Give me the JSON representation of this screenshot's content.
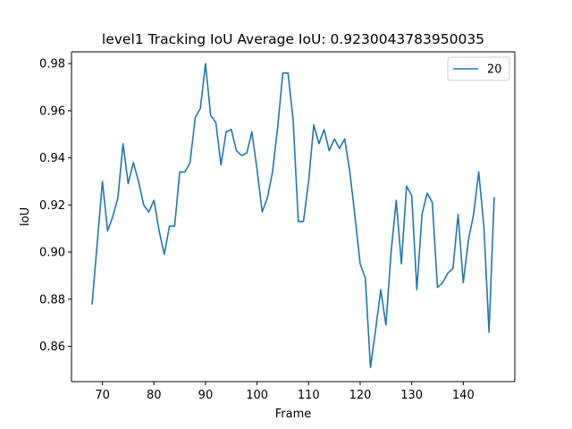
{
  "chart_data": {
    "type": "line",
    "title": "level1 Tracking IoU   Average IoU: 0.9230043783950035",
    "xlabel": "Frame",
    "ylabel": "IoU",
    "xlim": [
      64,
      150
    ],
    "ylim": [
      0.845,
      0.985
    ],
    "xticks": [
      70,
      80,
      90,
      100,
      110,
      120,
      130,
      140
    ],
    "yticks": [
      0.86,
      0.88,
      0.9,
      0.92,
      0.94,
      0.96,
      0.98
    ],
    "xtick_labels": [
      "70",
      "80",
      "90",
      "100",
      "110",
      "120",
      "130",
      "140"
    ],
    "ytick_labels": [
      "0.86",
      "0.88",
      "0.90",
      "0.92",
      "0.94",
      "0.96",
      "0.98"
    ],
    "grid": false,
    "legend_position": "top-right",
    "series": [
      {
        "name": "20",
        "color": "#1f77b4",
        "x": [
          68,
          69,
          70,
          71,
          72,
          73,
          74,
          75,
          76,
          77,
          78,
          79,
          80,
          81,
          82,
          83,
          84,
          85,
          86,
          87,
          88,
          89,
          90,
          91,
          92,
          93,
          94,
          95,
          96,
          97,
          98,
          99,
          100,
          101,
          102,
          103,
          104,
          105,
          106,
          107,
          108,
          109,
          110,
          111,
          112,
          113,
          114,
          115,
          116,
          117,
          118,
          119,
          120,
          121,
          122,
          123,
          124,
          125,
          126,
          127,
          128,
          129,
          130,
          131,
          132,
          133,
          134,
          135,
          136,
          137,
          138,
          139,
          140,
          141,
          142,
          143,
          144,
          145,
          146
        ],
        "y": [
          0.878,
          0.904,
          0.93,
          0.909,
          0.915,
          0.923,
          0.946,
          0.929,
          0.938,
          0.93,
          0.92,
          0.917,
          0.922,
          0.909,
          0.899,
          0.911,
          0.911,
          0.934,
          0.934,
          0.938,
          0.957,
          0.961,
          0.98,
          0.958,
          0.955,
          0.937,
          0.951,
          0.952,
          0.943,
          0.941,
          0.942,
          0.951,
          0.935,
          0.917,
          0.923,
          0.934,
          0.953,
          0.976,
          0.976,
          0.956,
          0.913,
          0.913,
          0.93,
          0.954,
          0.946,
          0.952,
          0.943,
          0.948,
          0.944,
          0.948,
          0.934,
          0.915,
          0.895,
          0.889,
          0.851,
          0.867,
          0.884,
          0.869,
          0.9,
          0.922,
          0.895,
          0.928,
          0.924,
          0.884,
          0.916,
          0.925,
          0.921,
          0.885,
          0.887,
          0.891,
          0.893,
          0.916,
          0.887,
          0.905,
          0.916,
          0.934,
          0.911,
          0.866,
          0.923
        ]
      }
    ]
  }
}
